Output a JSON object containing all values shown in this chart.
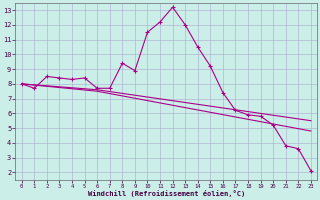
{
  "xlabel": "Windchill (Refroidissement éolien,°C)",
  "bg_color": "#cceee8",
  "grid_color": "#aaaacc",
  "line_color": "#aa0088",
  "xlim_min": -0.5,
  "xlim_max": 23.5,
  "ylim_min": 1.5,
  "ylim_max": 13.5,
  "xticks": [
    0,
    1,
    2,
    3,
    4,
    5,
    6,
    7,
    8,
    9,
    10,
    11,
    12,
    13,
    14,
    15,
    16,
    17,
    18,
    19,
    20,
    21,
    22,
    23
  ],
  "yticks": [
    2,
    3,
    4,
    5,
    6,
    7,
    8,
    9,
    10,
    11,
    12,
    13
  ],
  "line1_x": [
    0,
    1,
    2,
    3,
    4,
    5,
    6,
    7,
    8,
    9,
    10,
    11,
    12,
    13,
    14,
    15,
    16,
    17,
    18,
    19,
    20,
    21,
    22,
    23
  ],
  "line1_y": [
    8.0,
    7.7,
    8.5,
    8.4,
    8.3,
    8.4,
    7.7,
    7.7,
    9.4,
    8.9,
    11.5,
    12.2,
    13.2,
    12.0,
    10.5,
    9.2,
    7.4,
    6.2,
    5.9,
    5.8,
    5.2,
    3.8,
    3.6,
    2.1
  ],
  "line2_x": [
    0,
    6,
    23
  ],
  "line2_y": [
    8.0,
    7.6,
    5.5
  ],
  "line3_x": [
    0,
    6,
    23
  ],
  "line3_y": [
    8.0,
    7.5,
    4.8
  ]
}
